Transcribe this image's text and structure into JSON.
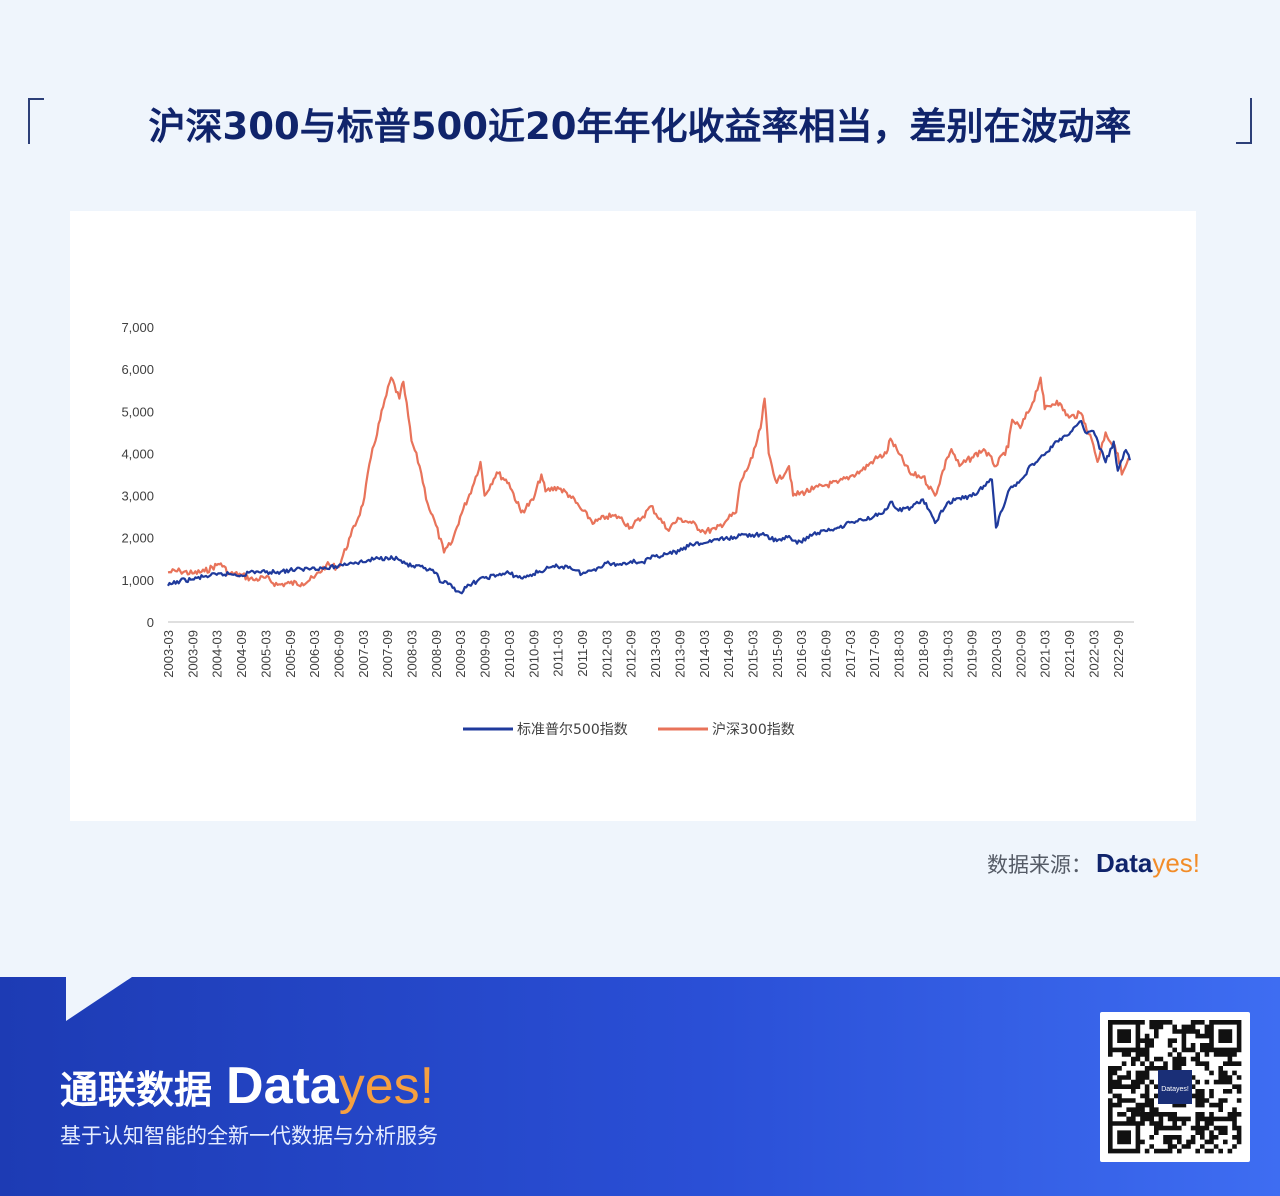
{
  "title": "沪深300与标普500近20年年化收益率相当，差别在波动率",
  "source": {
    "label": "数据来源：",
    "brand_data": "Data",
    "brand_yes": "yes!"
  },
  "footer": {
    "name_cn": "通联数据",
    "brand_data": "Data",
    "brand_yes": "yes!",
    "tagline": "基于认知智能的全新一代数据与分析服务",
    "qr_center_text": "Datayes!"
  },
  "colors": {
    "sp500": "#1f3a9c",
    "hs300": "#e8735a",
    "title": "#10246b",
    "accent": "#f28c28"
  },
  "chart_data": {
    "type": "line",
    "title": "",
    "xlabel": "",
    "ylabel": "",
    "ylim": [
      0,
      7000
    ],
    "yticks": [
      "0",
      "1,000",
      "2,000",
      "3,000",
      "4,000",
      "5,000",
      "6,000",
      "7,000"
    ],
    "xlim": [
      "2003-03",
      "2023-01"
    ],
    "x_ticks": [
      "2003-03",
      "2003-09",
      "2004-03",
      "2004-09",
      "2005-03",
      "2005-09",
      "2006-03",
      "2006-09",
      "2007-03",
      "2007-09",
      "2008-03",
      "2008-09",
      "2009-03",
      "2009-09",
      "2010-03",
      "2010-09",
      "2011-03",
      "2011-09",
      "2012-03",
      "2012-09",
      "2013-03",
      "2013-09",
      "2014-03",
      "2014-09",
      "2015-03",
      "2015-09",
      "2016-03",
      "2016-09",
      "2017-03",
      "2017-09",
      "2018-03",
      "2018-09",
      "2019-03",
      "2019-09",
      "2020-03",
      "2020-09",
      "2021-03",
      "2021-09",
      "2022-03",
      "2022-09"
    ],
    "grid": false,
    "legend_position": "bottom",
    "series": [
      {
        "name": "标准普尔500指数",
        "color": "#1f3a9c",
        "points": [
          [
            "2003-03",
            860
          ],
          [
            "2003-06",
            980
          ],
          [
            "2003-09",
            1010
          ],
          [
            "2003-12",
            1080
          ],
          [
            "2004-03",
            1120
          ],
          [
            "2004-06",
            1140
          ],
          [
            "2004-09",
            1110
          ],
          [
            "2004-12",
            1200
          ],
          [
            "2005-03",
            1180
          ],
          [
            "2005-06",
            1190
          ],
          [
            "2005-09",
            1230
          ],
          [
            "2005-12",
            1250
          ],
          [
            "2006-03",
            1290
          ],
          [
            "2006-06",
            1270
          ],
          [
            "2006-09",
            1330
          ],
          [
            "2006-12",
            1410
          ],
          [
            "2007-03",
            1420
          ],
          [
            "2007-06",
            1500
          ],
          [
            "2007-09",
            1520
          ],
          [
            "2007-10",
            1560
          ],
          [
            "2007-12",
            1470
          ],
          [
            "2008-03",
            1320
          ],
          [
            "2008-06",
            1280
          ],
          [
            "2008-09",
            1170
          ],
          [
            "2008-10",
            950
          ],
          [
            "2008-12",
            900
          ],
          [
            "2009-03",
            700
          ],
          [
            "2009-06",
            920
          ],
          [
            "2009-09",
            1050
          ],
          [
            "2009-12",
            1110
          ],
          [
            "2010-03",
            1160
          ],
          [
            "2010-06",
            1040
          ],
          [
            "2010-09",
            1140
          ],
          [
            "2010-12",
            1250
          ],
          [
            "2011-03",
            1320
          ],
          [
            "2011-06",
            1310
          ],
          [
            "2011-09",
            1140
          ],
          [
            "2011-12",
            1250
          ],
          [
            "2012-03",
            1400
          ],
          [
            "2012-06",
            1360
          ],
          [
            "2012-09",
            1440
          ],
          [
            "2012-12",
            1420
          ],
          [
            "2013-03",
            1560
          ],
          [
            "2013-06",
            1610
          ],
          [
            "2013-09",
            1680
          ],
          [
            "2013-12",
            1840
          ],
          [
            "2014-03",
            1870
          ],
          [
            "2014-06",
            1960
          ],
          [
            "2014-09",
            1970
          ],
          [
            "2014-12",
            2060
          ],
          [
            "2015-03",
            2070
          ],
          [
            "2015-06",
            2060
          ],
          [
            "2015-09",
            1920
          ],
          [
            "2015-12",
            2040
          ],
          [
            "2016-02",
            1860
          ],
          [
            "2016-06",
            2090
          ],
          [
            "2016-09",
            2160
          ],
          [
            "2016-12",
            2240
          ],
          [
            "2017-03",
            2360
          ],
          [
            "2017-06",
            2420
          ],
          [
            "2017-09",
            2510
          ],
          [
            "2017-12",
            2670
          ],
          [
            "2018-01",
            2850
          ],
          [
            "2018-03",
            2640
          ],
          [
            "2018-06",
            2720
          ],
          [
            "2018-09",
            2910
          ],
          [
            "2018-12",
            2350
          ],
          [
            "2019-03",
            2830
          ],
          [
            "2019-06",
            2940
          ],
          [
            "2019-09",
            2980
          ],
          [
            "2019-12",
            3230
          ],
          [
            "2020-02",
            3380
          ],
          [
            "2020-03",
            2240
          ],
          [
            "2020-06",
            3100
          ],
          [
            "2020-09",
            3360
          ],
          [
            "2020-12",
            3750
          ],
          [
            "2021-03",
            3970
          ],
          [
            "2021-06",
            4290
          ],
          [
            "2021-09",
            4450
          ],
          [
            "2021-12",
            4770
          ],
          [
            "2022-01",
            4500
          ],
          [
            "2022-03",
            4530
          ],
          [
            "2022-06",
            3790
          ],
          [
            "2022-08",
            4280
          ],
          [
            "2022-09",
            3590
          ],
          [
            "2022-11",
            4080
          ],
          [
            "2022-12",
            3840
          ]
        ]
      },
      {
        "name": "沪深300指数",
        "color": "#e8735a",
        "points": [
          [
            "2003-03",
            1180
          ],
          [
            "2003-06",
            1210
          ],
          [
            "2003-09",
            1150
          ],
          [
            "2003-12",
            1200
          ],
          [
            "2004-03",
            1350
          ],
          [
            "2004-04",
            1390
          ],
          [
            "2004-06",
            1150
          ],
          [
            "2004-09",
            1120
          ],
          [
            "2004-12",
            1000
          ],
          [
            "2005-03",
            1050
          ],
          [
            "2005-06",
            880
          ],
          [
            "2005-09",
            920
          ],
          [
            "2005-12",
            920
          ],
          [
            "2006-03",
            1050
          ],
          [
            "2006-06",
            1350
          ],
          [
            "2006-09",
            1300
          ],
          [
            "2006-12",
            2040
          ],
          [
            "2007-03",
            2780
          ],
          [
            "2007-05",
            3900
          ],
          [
            "2007-08",
            5100
          ],
          [
            "2007-10",
            5800
          ],
          [
            "2007-12",
            5300
          ],
          [
            "2008-01",
            5700
          ],
          [
            "2008-03",
            4300
          ],
          [
            "2008-05",
            3700
          ],
          [
            "2008-07",
            2800
          ],
          [
            "2008-09",
            2300
          ],
          [
            "2008-11",
            1650
          ],
          [
            "2009-01",
            1900
          ],
          [
            "2009-03",
            2500
          ],
          [
            "2009-06",
            3200
          ],
          [
            "2009-08",
            3800
          ],
          [
            "2009-09",
            3000
          ],
          [
            "2009-12",
            3550
          ],
          [
            "2010-03",
            3300
          ],
          [
            "2010-06",
            2600
          ],
          [
            "2010-09",
            2900
          ],
          [
            "2010-11",
            3500
          ],
          [
            "2010-12",
            3100
          ],
          [
            "2011-03",
            3200
          ],
          [
            "2011-06",
            3000
          ],
          [
            "2011-09",
            2650
          ],
          [
            "2011-12",
            2350
          ],
          [
            "2012-03",
            2500
          ],
          [
            "2012-06",
            2500
          ],
          [
            "2012-09",
            2250
          ],
          [
            "2012-12",
            2500
          ],
          [
            "2013-02",
            2750
          ],
          [
            "2013-06",
            2200
          ],
          [
            "2013-09",
            2450
          ],
          [
            "2013-12",
            2350
          ],
          [
            "2014-03",
            2150
          ],
          [
            "2014-06",
            2200
          ],
          [
            "2014-09",
            2450
          ],
          [
            "2014-11",
            2600
          ],
          [
            "2014-12",
            3300
          ],
          [
            "2015-03",
            3900
          ],
          [
            "2015-05",
            4600
          ],
          [
            "2015-06",
            5300
          ],
          [
            "2015-07",
            4000
          ],
          [
            "2015-09",
            3300
          ],
          [
            "2015-12",
            3700
          ],
          [
            "2016-01",
            3000
          ],
          [
            "2016-06",
            3150
          ],
          [
            "2016-09",
            3250
          ],
          [
            "2016-12",
            3300
          ],
          [
            "2017-03",
            3450
          ],
          [
            "2017-06",
            3600
          ],
          [
            "2017-09",
            3850
          ],
          [
            "2017-12",
            4000
          ],
          [
            "2018-01",
            4350
          ],
          [
            "2018-03",
            4000
          ],
          [
            "2018-06",
            3500
          ],
          [
            "2018-09",
            3450
          ],
          [
            "2018-12",
            3000
          ],
          [
            "2019-03",
            3900
          ],
          [
            "2019-04",
            4100
          ],
          [
            "2019-06",
            3700
          ],
          [
            "2019-09",
            3900
          ],
          [
            "2019-12",
            4100
          ],
          [
            "2020-03",
            3700
          ],
          [
            "2020-06",
            4150
          ],
          [
            "2020-07",
            4800
          ],
          [
            "2020-09",
            4600
          ],
          [
            "2020-12",
            5200
          ],
          [
            "2021-02",
            5800
          ],
          [
            "2021-03",
            5050
          ],
          [
            "2021-06",
            5250
          ],
          [
            "2021-09",
            4850
          ],
          [
            "2021-12",
            4950
          ],
          [
            "2022-01",
            4700
          ],
          [
            "2022-03",
            4200
          ],
          [
            "2022-04",
            3800
          ],
          [
            "2022-06",
            4500
          ],
          [
            "2022-09",
            4000
          ],
          [
            "2022-10",
            3500
          ],
          [
            "2022-12",
            3900
          ]
        ]
      }
    ]
  }
}
